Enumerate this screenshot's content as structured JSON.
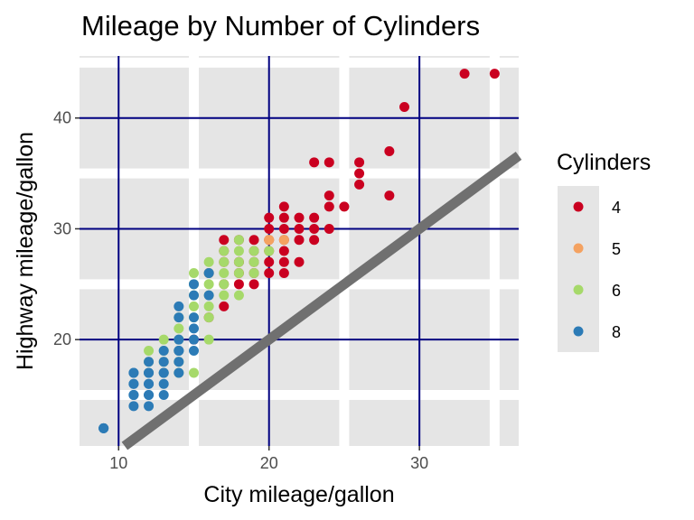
{
  "chart_data": {
    "type": "scatter",
    "title": "Mileage by Number of Cylinders",
    "xlabel": "City mileage/gallon",
    "ylabel": "Highway mileage/gallon",
    "xlim": [
      7.4,
      36.6
    ],
    "ylim": [
      10.4,
      45.6
    ],
    "x_ticks": [
      10,
      20,
      30
    ],
    "y_ticks": [
      20,
      30,
      40
    ],
    "grid": true,
    "reference_line": {
      "slope": 1,
      "intercept": 0,
      "color": "#707070"
    },
    "legend": {
      "title": "Cylinders",
      "position": "right",
      "entries": [
        {
          "label": "4",
          "color": "#ca0020"
        },
        {
          "label": "5",
          "color": "#f4a261"
        },
        {
          "label": "6",
          "color": "#a6d96a"
        },
        {
          "label": "8",
          "color": "#2c7bb6"
        }
      ]
    },
    "series": [
      {
        "name": "4",
        "color": "#ca0020",
        "points": [
          [
            35,
            44
          ],
          [
            33,
            44
          ],
          [
            29,
            41
          ],
          [
            28,
            37
          ],
          [
            28,
            33
          ],
          [
            26,
            36
          ],
          [
            26,
            35
          ],
          [
            26,
            34
          ],
          [
            24,
            36
          ],
          [
            23,
            36
          ],
          [
            24,
            33
          ],
          [
            24,
            32
          ],
          [
            25,
            32
          ],
          [
            23,
            31
          ],
          [
            22,
            31
          ],
          [
            23,
            30
          ],
          [
            22,
            29
          ],
          [
            21,
            31
          ],
          [
            21,
            30
          ],
          [
            21,
            29
          ],
          [
            20,
            31
          ],
          [
            20,
            29
          ],
          [
            20,
            28
          ],
          [
            21,
            28
          ],
          [
            19,
            29
          ],
          [
            19,
            28
          ],
          [
            19,
            27
          ],
          [
            19,
            26
          ],
          [
            18,
            29
          ],
          [
            18,
            27
          ],
          [
            18,
            26
          ],
          [
            18,
            25
          ],
          [
            20,
            27
          ],
          [
            20,
            26
          ],
          [
            21,
            27
          ],
          [
            22,
            27
          ],
          [
            21,
            26
          ],
          [
            19,
            25
          ],
          [
            17,
            29
          ],
          [
            17,
            27
          ],
          [
            17,
            25
          ],
          [
            17,
            23
          ],
          [
            16,
            26
          ],
          [
            16,
            22
          ],
          [
            15,
            20
          ],
          [
            21,
            32
          ],
          [
            23,
            29
          ],
          [
            22,
            30
          ],
          [
            20,
            30
          ],
          [
            24,
            30
          ],
          [
            17,
            28
          ]
        ]
      },
      {
        "name": "5",
        "color": "#f4a261",
        "points": [
          [
            20,
            28
          ],
          [
            20,
            29
          ],
          [
            21,
            29
          ],
          [
            20,
            29
          ]
        ]
      },
      {
        "name": "6",
        "color": "#a6d96a",
        "points": [
          [
            18,
            28
          ],
          [
            18,
            27
          ],
          [
            18,
            26
          ],
          [
            17,
            27
          ],
          [
            17,
            26
          ],
          [
            17,
            25
          ],
          [
            16,
            26
          ],
          [
            16,
            25
          ],
          [
            16,
            24
          ],
          [
            16,
            23
          ],
          [
            15,
            25
          ],
          [
            15,
            24
          ],
          [
            15,
            23
          ],
          [
            15,
            22
          ],
          [
            14,
            22
          ],
          [
            14,
            21
          ],
          [
            14,
            20
          ],
          [
            14,
            19
          ],
          [
            13,
            19
          ],
          [
            13,
            18
          ],
          [
            13,
            17
          ],
          [
            12,
            19
          ],
          [
            12,
            18
          ],
          [
            14,
            17
          ],
          [
            15,
            17
          ],
          [
            16,
            20
          ],
          [
            19,
            26
          ],
          [
            19,
            27
          ],
          [
            19,
            28
          ],
          [
            20,
            28
          ],
          [
            18,
            24
          ],
          [
            17,
            24
          ],
          [
            16,
            27
          ],
          [
            15,
            26
          ],
          [
            13,
            20
          ],
          [
            14,
            18
          ],
          [
            12,
            17
          ],
          [
            17,
            28
          ],
          [
            18,
            29
          ],
          [
            16,
            22
          ]
        ]
      },
      {
        "name": "8",
        "color": "#2c7bb6",
        "points": [
          [
            9,
            12
          ],
          [
            9,
            12
          ],
          [
            9,
            12
          ],
          [
            11,
            17
          ],
          [
            11,
            16
          ],
          [
            11,
            15
          ],
          [
            11,
            14
          ],
          [
            11,
            15
          ],
          [
            11,
            17
          ],
          [
            12,
            17
          ],
          [
            12,
            16
          ],
          [
            12,
            15
          ],
          [
            12,
            17
          ],
          [
            13,
            17
          ],
          [
            13,
            18
          ],
          [
            13,
            16
          ],
          [
            12,
            18
          ],
          [
            11,
            16
          ],
          [
            11,
            15
          ],
          [
            14,
            20
          ],
          [
            14,
            19
          ],
          [
            14,
            18
          ],
          [
            15,
            20
          ],
          [
            15,
            19
          ],
          [
            14,
            23
          ],
          [
            15,
            25
          ],
          [
            15,
            24
          ],
          [
            16,
            26
          ],
          [
            15,
            21
          ],
          [
            14,
            22
          ],
          [
            12,
            15
          ],
          [
            13,
            15
          ],
          [
            12,
            14
          ],
          [
            13,
            17
          ],
          [
            14,
            17
          ],
          [
            16,
            24
          ],
          [
            15,
            22
          ],
          [
            14,
            19
          ],
          [
            13,
            19
          ],
          [
            12,
            16
          ]
        ]
      }
    ]
  }
}
